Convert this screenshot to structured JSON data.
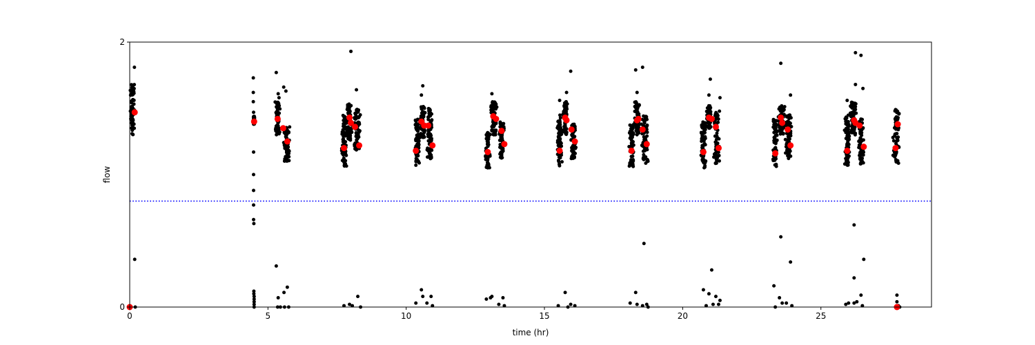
{
  "chart_data": {
    "type": "scatter",
    "title": "",
    "xlabel": "time (hr)",
    "ylabel": "flow",
    "xlim": [
      0,
      29
    ],
    "ylim": [
      0,
      2
    ],
    "xticks": [
      0,
      5,
      10,
      15,
      20,
      25
    ],
    "xtick_labels": [
      "0",
      "5",
      "10",
      "15",
      "20",
      "25"
    ],
    "yticks": [
      0,
      2
    ],
    "ytick_labels": [
      "0",
      "2"
    ],
    "grid": false,
    "threshold": {
      "y": 0.8,
      "style": "dotted",
      "color": "#0000ff"
    },
    "colors": {
      "raw": "#000000",
      "summary": "#ff0000",
      "threshold": "#0000ff"
    },
    "raw_clusters": [
      {
        "x": [
          0.0,
          0.2
        ],
        "y": [
          1.3,
          1.68
        ]
      },
      {
        "x": [
          4.47,
          4.52
        ],
        "y": [
          1.38,
          1.44
        ]
      },
      {
        "x": [
          5.25,
          5.45
        ],
        "y": [
          1.3,
          1.55
        ]
      },
      {
        "x": [
          5.55,
          5.8
        ],
        "y": [
          1.1,
          1.36
        ]
      },
      {
        "x": [
          7.65,
          7.85
        ],
        "y": [
          1.06,
          1.45
        ]
      },
      {
        "x": [
          7.85,
          8.05
        ],
        "y": [
          1.26,
          1.55
        ]
      },
      {
        "x": [
          8.1,
          8.35
        ],
        "y": [
          1.18,
          1.5
        ]
      },
      {
        "x": [
          10.3,
          10.5
        ],
        "y": [
          1.07,
          1.43
        ]
      },
      {
        "x": [
          10.5,
          10.7
        ],
        "y": [
          1.28,
          1.52
        ]
      },
      {
        "x": [
          10.75,
          10.95
        ],
        "y": [
          1.12,
          1.5
        ]
      },
      {
        "x": [
          12.85,
          13.05
        ],
        "y": [
          1.05,
          1.34
        ]
      },
      {
        "x": [
          13.05,
          13.3
        ],
        "y": [
          1.3,
          1.55
        ]
      },
      {
        "x": [
          13.35,
          13.55
        ],
        "y": [
          1.12,
          1.4
        ]
      },
      {
        "x": [
          15.45,
          15.65
        ],
        "y": [
          1.06,
          1.45
        ]
      },
      {
        "x": [
          15.65,
          15.85
        ],
        "y": [
          1.3,
          1.55
        ]
      },
      {
        "x": [
          15.95,
          16.15
        ],
        "y": [
          1.12,
          1.38
        ]
      },
      {
        "x": [
          18.05,
          18.25
        ],
        "y": [
          1.06,
          1.38
        ]
      },
      {
        "x": [
          18.25,
          18.45
        ],
        "y": [
          1.3,
          1.55
        ]
      },
      {
        "x": [
          18.5,
          18.75
        ],
        "y": [
          1.08,
          1.45
        ]
      },
      {
        "x": [
          20.65,
          20.85
        ],
        "y": [
          1.05,
          1.4
        ]
      },
      {
        "x": [
          20.85,
          21.05
        ],
        "y": [
          1.35,
          1.52
        ]
      },
      {
        "x": [
          21.1,
          21.35
        ],
        "y": [
          1.08,
          1.48
        ]
      },
      {
        "x": [
          23.25,
          23.45
        ],
        "y": [
          1.06,
          1.42
        ]
      },
      {
        "x": [
          23.45,
          23.7
        ],
        "y": [
          1.3,
          1.52
        ]
      },
      {
        "x": [
          23.7,
          23.95
        ],
        "y": [
          1.12,
          1.45
        ]
      },
      {
        "x": [
          25.85,
          26.05
        ],
        "y": [
          1.06,
          1.45
        ]
      },
      {
        "x": [
          26.05,
          26.3
        ],
        "y": [
          1.3,
          1.55
        ]
      },
      {
        "x": [
          26.35,
          26.55
        ],
        "y": [
          1.08,
          1.42
        ]
      },
      {
        "x": [
          27.6,
          27.85
        ],
        "y": [
          1.08,
          1.5
        ]
      }
    ],
    "raw_points": [
      {
        "x": 0.0,
        "y": 0.0
      },
      {
        "x": 0.05,
        "y": 0.0
      },
      {
        "x": 0.18,
        "y": 0.36
      },
      {
        "x": 0.2,
        "y": 0.0
      },
      {
        "x": 0.17,
        "y": 1.81
      },
      {
        "x": 4.47,
        "y": 1.73
      },
      {
        "x": 4.47,
        "y": 1.62
      },
      {
        "x": 4.47,
        "y": 1.55
      },
      {
        "x": 4.48,
        "y": 1.47
      },
      {
        "x": 4.48,
        "y": 1.17
      },
      {
        "x": 4.48,
        "y": 1.0
      },
      {
        "x": 4.48,
        "y": 0.88
      },
      {
        "x": 4.48,
        "y": 0.77
      },
      {
        "x": 4.48,
        "y": 0.66
      },
      {
        "x": 4.49,
        "y": 0.63
      },
      {
        "x": 4.49,
        "y": 0.12
      },
      {
        "x": 4.49,
        "y": 0.1
      },
      {
        "x": 4.5,
        "y": 0.08
      },
      {
        "x": 4.5,
        "y": 0.06
      },
      {
        "x": 4.5,
        "y": 0.04
      },
      {
        "x": 4.5,
        "y": 0.02
      },
      {
        "x": 4.5,
        "y": 0.0
      },
      {
        "x": 5.3,
        "y": 1.77
      },
      {
        "x": 5.37,
        "y": 1.61
      },
      {
        "x": 5.4,
        "y": 1.58
      },
      {
        "x": 5.57,
        "y": 1.66
      },
      {
        "x": 5.65,
        "y": 1.63
      },
      {
        "x": 5.3,
        "y": 0.31
      },
      {
        "x": 5.37,
        "y": 0.07
      },
      {
        "x": 5.58,
        "y": 0.11
      },
      {
        "x": 5.7,
        "y": 0.15
      },
      {
        "x": 5.35,
        "y": 0.0
      },
      {
        "x": 5.45,
        "y": 0.0
      },
      {
        "x": 5.6,
        "y": 0.0
      },
      {
        "x": 5.75,
        "y": 0.0
      },
      {
        "x": 8.0,
        "y": 1.93
      },
      {
        "x": 8.2,
        "y": 1.64
      },
      {
        "x": 7.75,
        "y": 0.01
      },
      {
        "x": 7.95,
        "y": 0.02
      },
      {
        "x": 8.05,
        "y": 0.01
      },
      {
        "x": 8.25,
        "y": 0.08
      },
      {
        "x": 8.35,
        "y": 0.0
      },
      {
        "x": 10.6,
        "y": 1.67
      },
      {
        "x": 10.55,
        "y": 1.6
      },
      {
        "x": 10.35,
        "y": 0.03
      },
      {
        "x": 10.55,
        "y": 0.13
      },
      {
        "x": 10.6,
        "y": 0.08
      },
      {
        "x": 10.75,
        "y": 0.03
      },
      {
        "x": 10.9,
        "y": 0.08
      },
      {
        "x": 10.95,
        "y": 0.01
      },
      {
        "x": 13.1,
        "y": 1.61
      },
      {
        "x": 12.9,
        "y": 0.06
      },
      {
        "x": 13.05,
        "y": 0.07
      },
      {
        "x": 13.1,
        "y": 0.08
      },
      {
        "x": 13.35,
        "y": 0.02
      },
      {
        "x": 13.5,
        "y": 0.07
      },
      {
        "x": 13.55,
        "y": 0.01
      },
      {
        "x": 15.55,
        "y": 1.56
      },
      {
        "x": 15.8,
        "y": 1.62
      },
      {
        "x": 15.95,
        "y": 1.78
      },
      {
        "x": 15.5,
        "y": 0.01
      },
      {
        "x": 15.75,
        "y": 0.11
      },
      {
        "x": 15.95,
        "y": 0.02
      },
      {
        "x": 16.1,
        "y": 0.01
      },
      {
        "x": 15.85,
        "y": 0.0
      },
      {
        "x": 18.3,
        "y": 1.79
      },
      {
        "x": 18.55,
        "y": 1.81
      },
      {
        "x": 18.35,
        "y": 1.62
      },
      {
        "x": 18.6,
        "y": 0.48
      },
      {
        "x": 18.1,
        "y": 0.03
      },
      {
        "x": 18.3,
        "y": 0.11
      },
      {
        "x": 18.35,
        "y": 0.02
      },
      {
        "x": 18.55,
        "y": 0.01
      },
      {
        "x": 18.7,
        "y": 0.02
      },
      {
        "x": 18.75,
        "y": 0.0
      },
      {
        "x": 21.0,
        "y": 1.72
      },
      {
        "x": 20.95,
        "y": 1.6
      },
      {
        "x": 21.35,
        "y": 1.58
      },
      {
        "x": 21.05,
        "y": 0.28
      },
      {
        "x": 20.75,
        "y": 0.13
      },
      {
        "x": 20.95,
        "y": 0.1
      },
      {
        "x": 21.2,
        "y": 0.08
      },
      {
        "x": 21.35,
        "y": 0.05
      },
      {
        "x": 20.85,
        "y": 0.01
      },
      {
        "x": 21.1,
        "y": 0.02
      },
      {
        "x": 21.3,
        "y": 0.02
      },
      {
        "x": 23.55,
        "y": 1.84
      },
      {
        "x": 23.9,
        "y": 1.6
      },
      {
        "x": 23.55,
        "y": 0.53
      },
      {
        "x": 23.9,
        "y": 0.34
      },
      {
        "x": 23.3,
        "y": 0.16
      },
      {
        "x": 23.5,
        "y": 0.07
      },
      {
        "x": 23.6,
        "y": 0.03
      },
      {
        "x": 23.75,
        "y": 0.03
      },
      {
        "x": 23.95,
        "y": 0.01
      },
      {
        "x": 23.35,
        "y": 0.0
      },
      {
        "x": 26.25,
        "y": 1.92
      },
      {
        "x": 26.45,
        "y": 1.9
      },
      {
        "x": 26.25,
        "y": 1.68
      },
      {
        "x": 26.52,
        "y": 1.65
      },
      {
        "x": 25.95,
        "y": 1.56
      },
      {
        "x": 26.2,
        "y": 0.62
      },
      {
        "x": 26.55,
        "y": 0.36
      },
      {
        "x": 26.2,
        "y": 0.22
      },
      {
        "x": 26.45,
        "y": 0.09
      },
      {
        "x": 25.9,
        "y": 0.02
      },
      {
        "x": 26.0,
        "y": 0.03
      },
      {
        "x": 26.2,
        "y": 0.03
      },
      {
        "x": 26.3,
        "y": 0.04
      },
      {
        "x": 26.5,
        "y": 0.01
      },
      {
        "x": 27.7,
        "y": 1.49
      },
      {
        "x": 27.75,
        "y": 0.09
      },
      {
        "x": 27.75,
        "y": 0.04
      },
      {
        "x": 27.8,
        "y": 0.01
      },
      {
        "x": 27.85,
        "y": 0.0
      }
    ],
    "summary_points": [
      {
        "x": 0.0,
        "y": 0.0
      },
      {
        "x": 0.18,
        "y": 1.47
      },
      {
        "x": 4.5,
        "y": 1.4
      },
      {
        "x": 5.35,
        "y": 1.42
      },
      {
        "x": 5.55,
        "y": 1.35
      },
      {
        "x": 5.7,
        "y": 1.25
      },
      {
        "x": 7.75,
        "y": 1.2
      },
      {
        "x": 7.95,
        "y": 1.43
      },
      {
        "x": 8.0,
        "y": 1.39
      },
      {
        "x": 8.15,
        "y": 1.36
      },
      {
        "x": 8.3,
        "y": 1.22
      },
      {
        "x": 10.35,
        "y": 1.18
      },
      {
        "x": 10.55,
        "y": 1.4
      },
      {
        "x": 10.65,
        "y": 1.37
      },
      {
        "x": 10.8,
        "y": 1.37
      },
      {
        "x": 10.95,
        "y": 1.22
      },
      {
        "x": 12.95,
        "y": 1.17
      },
      {
        "x": 13.15,
        "y": 1.44
      },
      {
        "x": 13.25,
        "y": 1.42
      },
      {
        "x": 13.45,
        "y": 1.33
      },
      {
        "x": 13.55,
        "y": 1.23
      },
      {
        "x": 15.55,
        "y": 1.18
      },
      {
        "x": 15.75,
        "y": 1.43
      },
      {
        "x": 15.8,
        "y": 1.41
      },
      {
        "x": 15.98,
        "y": 1.34
      },
      {
        "x": 16.1,
        "y": 1.25
      },
      {
        "x": 18.15,
        "y": 1.18
      },
      {
        "x": 18.35,
        "y": 1.41
      },
      {
        "x": 18.4,
        "y": 1.42
      },
      {
        "x": 18.55,
        "y": 1.34
      },
      {
        "x": 18.7,
        "y": 1.23
      },
      {
        "x": 20.75,
        "y": 1.17
      },
      {
        "x": 20.95,
        "y": 1.43
      },
      {
        "x": 21.05,
        "y": 1.42
      },
      {
        "x": 21.2,
        "y": 1.36
      },
      {
        "x": 21.3,
        "y": 1.2
      },
      {
        "x": 23.35,
        "y": 1.16
      },
      {
        "x": 23.55,
        "y": 1.43
      },
      {
        "x": 23.6,
        "y": 1.39
      },
      {
        "x": 23.8,
        "y": 1.34
      },
      {
        "x": 23.9,
        "y": 1.22
      },
      {
        "x": 25.95,
        "y": 1.18
      },
      {
        "x": 26.2,
        "y": 1.41
      },
      {
        "x": 26.25,
        "y": 1.39
      },
      {
        "x": 26.4,
        "y": 1.37
      },
      {
        "x": 26.55,
        "y": 1.21
      },
      {
        "x": 27.7,
        "y": 1.2
      },
      {
        "x": 27.78,
        "y": 1.38
      },
      {
        "x": 27.75,
        "y": 0.0
      }
    ]
  }
}
